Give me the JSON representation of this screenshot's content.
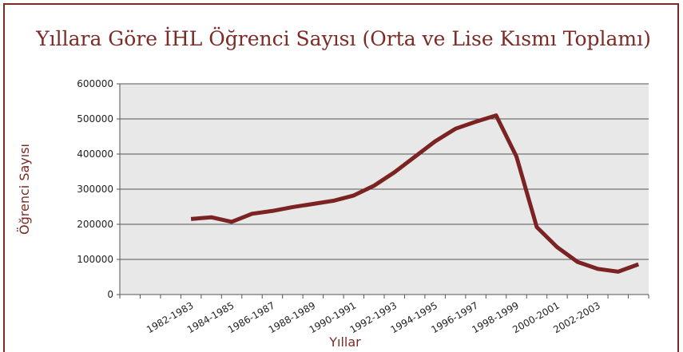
{
  "chart_data": {
    "type": "line",
    "title": "Yıllara Göre İHL Öğrenci Sayısı (Orta ve Lise Kısmı Toplamı)",
    "x_label": "Yıllar",
    "y_label": "Öğrenci Sayısı",
    "categories": [
      null,
      null,
      null,
      "1982-1983",
      null,
      "1984-1985",
      null,
      "1986-1987",
      null,
      "1988-1989",
      null,
      "1990-1991",
      null,
      "1992-1993",
      null,
      "1994-1995",
      null,
      "1996-1997",
      null,
      "1998-1999",
      null,
      "2000-2001",
      null,
      "2002-2003",
      null,
      null
    ],
    "series": [
      {
        "name": "Öğrenci Sayısı",
        "color": "#7b2322",
        "values": [
          null,
          null,
          null,
          215000,
          220000,
          207000,
          230000,
          238000,
          249000,
          258000,
          267000,
          282000,
          310000,
          348000,
          392000,
          436000,
          472000,
          492000,
          510000,
          393000,
          192000,
          135000,
          93000,
          73000,
          65000,
          86000
        ]
      }
    ],
    "ylim": [
      0,
      600000
    ],
    "yticks": [
      0,
      100000,
      200000,
      300000,
      400000,
      500000,
      600000
    ],
    "grid": true
  }
}
